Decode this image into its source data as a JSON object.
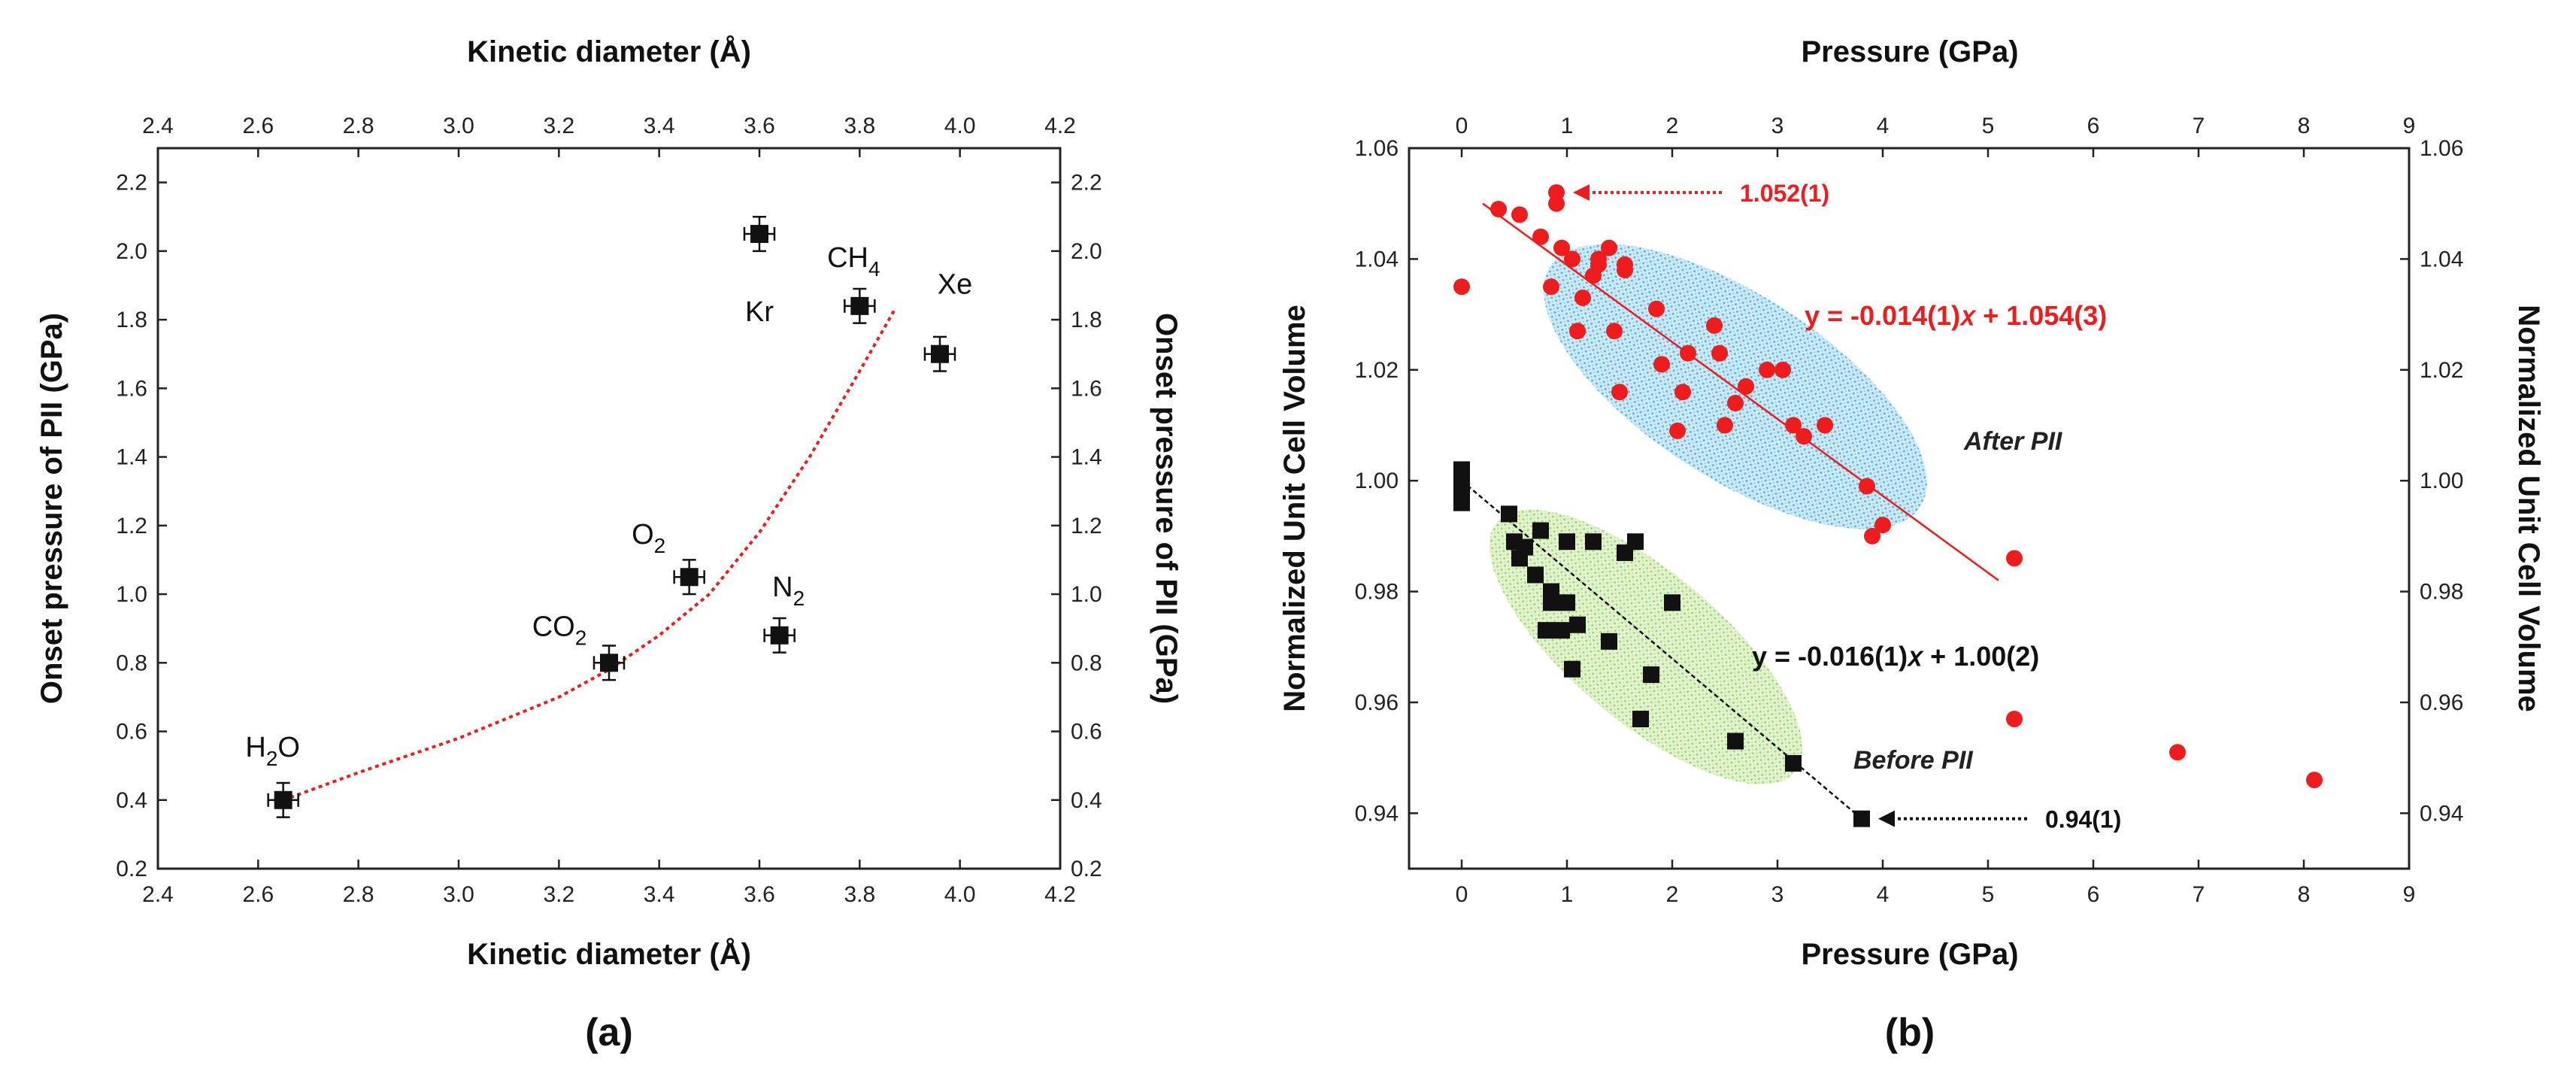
{
  "chart_data": [
    {
      "type": "scatter",
      "panel_label": "(a)",
      "xlabel_top": "Kinetic diameter (Å)",
      "xlabel_bottom": "Kinetic diameter (Å)",
      "ylabel_left": "Onset pressure of PII (GPa)",
      "ylabel_right": "Onset pressure of PII (GPa)",
      "xlim": [
        2.4,
        4.2
      ],
      "ylim": [
        0.2,
        2.3
      ],
      "xticks": [
        "2.4",
        "2.6",
        "2.8",
        "3.0",
        "3.2",
        "3.4",
        "3.6",
        "3.8",
        "4.0",
        "4.2"
      ],
      "yticks": [
        "0.2",
        "0.4",
        "0.6",
        "0.8",
        "1.0",
        "1.2",
        "1.4",
        "1.6",
        "1.8",
        "2.0",
        "2.2"
      ],
      "points": [
        {
          "base": "H",
          "sub": "2",
          "tail": "O",
          "x": 2.65,
          "y": 0.4,
          "xerr": 0.03,
          "yerr": 0.05
        },
        {
          "base": "CO",
          "sub": "2",
          "tail": "",
          "x": 3.3,
          "y": 0.8,
          "xerr": 0.03,
          "yerr": 0.05
        },
        {
          "base": "O",
          "sub": "2",
          "tail": "",
          "x": 3.46,
          "y": 1.05,
          "xerr": 0.03,
          "yerr": 0.05
        },
        {
          "base": "N",
          "sub": "2",
          "tail": "",
          "x": 3.64,
          "y": 0.88,
          "xerr": 0.03,
          "yerr": 0.05
        },
        {
          "base": "Kr",
          "sub": "",
          "tail": "",
          "x": 3.6,
          "y": 2.05,
          "xerr": 0.03,
          "yerr": 0.05
        },
        {
          "base": "CH",
          "sub": "4",
          "tail": "",
          "x": 3.8,
          "y": 1.84,
          "xerr": 0.03,
          "yerr": 0.05
        },
        {
          "base": "Xe",
          "sub": "",
          "tail": "",
          "x": 3.96,
          "y": 1.7,
          "xerr": 0.03,
          "yerr": 0.05
        }
      ],
      "fit_curve": {
        "style": "dotted",
        "color": "#ee1c1c",
        "x": [
          2.65,
          2.8,
          3.0,
          3.2,
          3.3,
          3.4,
          3.5,
          3.6,
          3.7,
          3.8,
          3.87
        ],
        "y": [
          0.4,
          0.48,
          0.58,
          0.7,
          0.78,
          0.88,
          1.0,
          1.18,
          1.4,
          1.65,
          1.83
        ]
      }
    },
    {
      "type": "scatter",
      "panel_label": "(b)",
      "xlabel_top": "Pressure (GPa)",
      "xlabel_bottom": "Pressure (GPa)",
      "ylabel_left": "Normalized Unit Cell Volume",
      "ylabel_right": "Normalized Unit Cell Volume",
      "xlim": [
        -0.5,
        9
      ],
      "ylim": [
        0.93,
        1.06
      ],
      "xticks": [
        "0",
        "1",
        "2",
        "3",
        "4",
        "5",
        "6",
        "7",
        "8",
        "9"
      ],
      "yticks": [
        "0.94",
        "0.96",
        "0.98",
        "1.00",
        "1.02",
        "1.04",
        "1.06"
      ],
      "series": [
        {
          "name": "After PII",
          "marker": "circle",
          "color": "#ee1c1c",
          "x": [
            0,
            0.35,
            0.55,
            0.75,
            0.85,
            0.9,
            0.9,
            0.95,
            1.05,
            1.1,
            1.15,
            1.25,
            1.3,
            1.3,
            1.4,
            1.45,
            1.5,
            1.55,
            1.55,
            1.85,
            1.9,
            2.05,
            2.1,
            2.15,
            2.4,
            2.45,
            2.5,
            2.6,
            2.7,
            2.9,
            3.05,
            3.15,
            3.25,
            3.45,
            3.85,
            3.9,
            4.0,
            5.25,
            5.25,
            6.8,
            8.1
          ],
          "y": [
            1.035,
            1.049,
            1.048,
            1.044,
            1.035,
            1.052,
            1.05,
            1.042,
            1.04,
            1.027,
            1.033,
            1.037,
            1.039,
            1.04,
            1.042,
            1.027,
            1.016,
            1.039,
            1.038,
            1.031,
            1.021,
            1.009,
            1.016,
            1.023,
            1.028,
            1.023,
            1.01,
            1.014,
            1.017,
            1.02,
            1.02,
            1.01,
            1.008,
            1.01,
            0.999,
            0.99,
            0.992,
            0.986,
            0.957,
            0.951,
            0.946
          ]
        },
        {
          "name": "Before PII",
          "marker": "square",
          "color": "#111111",
          "x": [
            0,
            0,
            0,
            0,
            0,
            0.45,
            0.5,
            0.55,
            0.6,
            0.7,
            0.75,
            0.8,
            0.85,
            0.85,
            0.95,
            1.0,
            1.0,
            1.05,
            1.1,
            1.25,
            1.4,
            1.55,
            1.65,
            1.7,
            1.8,
            2.0,
            2.6,
            3.15,
            3.8
          ],
          "y": [
            1.002,
            1.0,
            0.999,
            0.997,
            0.996,
            0.994,
            0.989,
            0.986,
            0.988,
            0.983,
            0.991,
            0.973,
            0.98,
            0.978,
            0.973,
            0.989,
            0.978,
            0.966,
            0.974,
            0.989,
            0.971,
            0.987,
            0.989,
            0.957,
            0.965,
            0.978,
            0.953,
            0.949,
            0.939
          ]
        }
      ],
      "fit_lines": [
        {
          "name": "After PII fit",
          "color": "#ee1c1c",
          "x": [
            0.2,
            5.1
          ],
          "y": [
            1.05,
            0.982
          ]
        },
        {
          "name": "Before PII fit",
          "color": "#111111",
          "x": [
            0,
            3.8
          ],
          "y": [
            1.0,
            0.939
          ]
        }
      ],
      "ellipses": [
        {
          "name": "After PII region",
          "color": "#7ec8e3",
          "cx": 2.6,
          "cy": 1.017,
          "rx": 3.05,
          "ry": 0.0165,
          "angle_deg": 33
        },
        {
          "name": "Before PII region",
          "color": "#b5e08a",
          "cx": 1.75,
          "cy": 0.97,
          "rx": 2.55,
          "ry": 0.0135,
          "angle_deg": 40
        }
      ],
      "equations": {
        "after": "y = -0.014(1)𝑥 + 1.054(3)",
        "before": "y = -0.016(1)𝑥 + 1.00(2)"
      },
      "region_labels": {
        "after": "After PII",
        "before": "Before PII"
      },
      "annotations": [
        {
          "text": "1.052(1)",
          "color": "#ee1c1c",
          "x": 0.9,
          "y": 1.052
        },
        {
          "text": "0.94(1)",
          "color": "#111111",
          "x": 3.8,
          "y": 0.939
        }
      ]
    }
  ]
}
